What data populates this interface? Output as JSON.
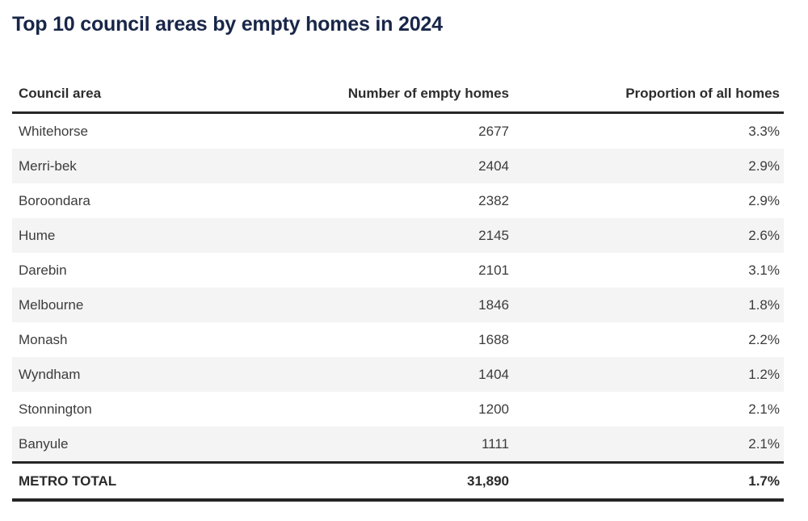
{
  "chart_data": {
    "type": "table",
    "title": "Top 10 council areas by empty homes in 2024",
    "columns": [
      "Council area",
      "Number of empty homes",
      "Proportion of all homes"
    ],
    "rows": [
      {
        "area": "Whitehorse",
        "empty_homes": "2677",
        "proportion": "3.3%"
      },
      {
        "area": "Merri-bek",
        "empty_homes": "2404",
        "proportion": "2.9%"
      },
      {
        "area": "Boroondara",
        "empty_homes": "2382",
        "proportion": "2.9%"
      },
      {
        "area": "Hume",
        "empty_homes": "2145",
        "proportion": "2.6%"
      },
      {
        "area": "Darebin",
        "empty_homes": "2101",
        "proportion": "3.1%"
      },
      {
        "area": "Melbourne",
        "empty_homes": "1846",
        "proportion": "1.8%"
      },
      {
        "area": "Monash",
        "empty_homes": "1688",
        "proportion": "2.2%"
      },
      {
        "area": "Wyndham",
        "empty_homes": "1404",
        "proportion": "1.2%"
      },
      {
        "area": "Stonnington",
        "empty_homes": "1200",
        "proportion": "2.1%"
      },
      {
        "area": "Banyule",
        "empty_homes": "1111",
        "proportion": "2.1%"
      }
    ],
    "total": {
      "label": "METRO TOTAL",
      "empty_homes": "31,890",
      "proportion": "1.7%"
    },
    "layout_hints": {
      "numeric_columns_aligned": "right",
      "zebra_striping": true,
      "grid": "off"
    }
  },
  "colors": {
    "title": "#182648",
    "header_text": "#2d2d2d",
    "cell_text": "#3c3c3c",
    "total_text": "#2a2a2a",
    "divider_dark": "#262626",
    "row_alt_bg": "#f4f4f4",
    "background": "#ffffff"
  }
}
